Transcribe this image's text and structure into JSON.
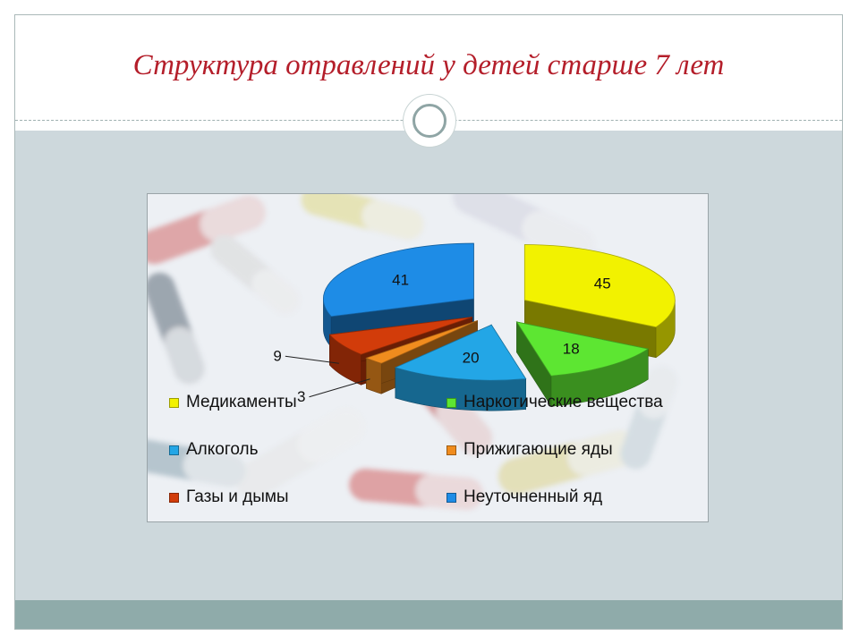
{
  "slide": {
    "title": "Структура отравлений у детей старше 7 лет"
  },
  "colors": {
    "title": "#b41e2a",
    "band": "#cdd8dc",
    "footer": "#8fabaa"
  },
  "chart_data": {
    "type": "pie",
    "title": "",
    "labels": [
      "Медикаменты",
      "Наркотические вещества",
      "Алкоголь",
      "Прижигающие яды",
      "Газы и дымы",
      "Неуточненный яд"
    ],
    "values": [
      45,
      18,
      20,
      3,
      9,
      41
    ],
    "colors": [
      "#f2f200",
      "#5de632",
      "#23a6e6",
      "#f08c1e",
      "#d23c0a",
      "#1e8ce6"
    ],
    "exploded": true,
    "three_d": true,
    "legend": "bottom"
  }
}
